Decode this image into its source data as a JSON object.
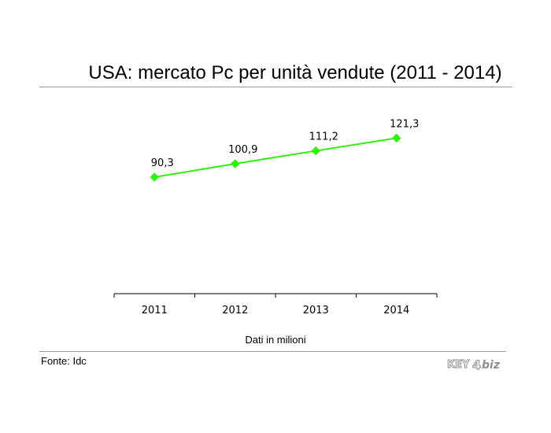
{
  "title": "USA: mercato Pc per unità vendute (2011 - 2014)",
  "note": "Dati in milioni",
  "source": "Fonte: Idc",
  "logo": {
    "left": "KEY",
    "right": "biz"
  },
  "colors": {
    "series": "#33ee11",
    "marker": "#22ff00",
    "rule": "#9a9a9a",
    "axis": "#000000",
    "logo": "#8a8f94"
  },
  "chart_data": {
    "type": "line",
    "categories": [
      "2011",
      "2012",
      "2013",
      "2014"
    ],
    "series": [
      {
        "values": [
          90.3,
          100.9,
          111.2,
          121.3
        ],
        "labels": [
          "90,3",
          "100,9",
          "111,2",
          "121,3"
        ]
      }
    ],
    "title": "USA: mercato Pc per unità vendute (2011 - 2014)",
    "xlabel": "Dati in milioni",
    "ylabel": "",
    "grid": false,
    "legend": "none"
  }
}
